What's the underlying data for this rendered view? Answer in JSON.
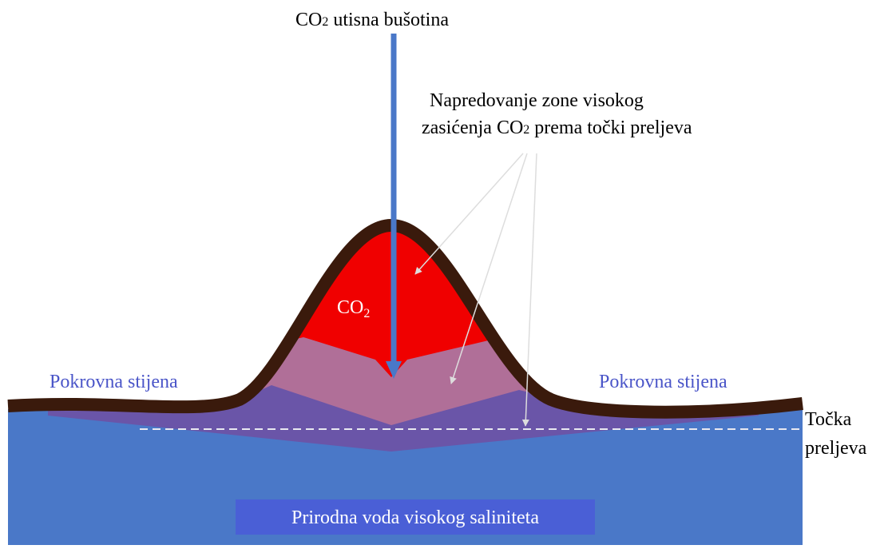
{
  "well_label": {
    "main": "CO",
    "sub": "2",
    "rest": " utisna bušotina"
  },
  "progress_label": {
    "line1": "Napredovanje zone visokog",
    "line2_main": "zasićenja CO",
    "line2_sub": "2",
    "line2_rest": " prema točki preljeva"
  },
  "co2_label": {
    "main": "CO",
    "sub": "2"
  },
  "caprock_left": "Pokrovna stijena",
  "caprock_right": "Pokrovna stijena",
  "spill_point": {
    "line1": "Točka",
    "line2": "preljeva"
  },
  "water_label": "Prirodna voda visokog saliniteta"
}
